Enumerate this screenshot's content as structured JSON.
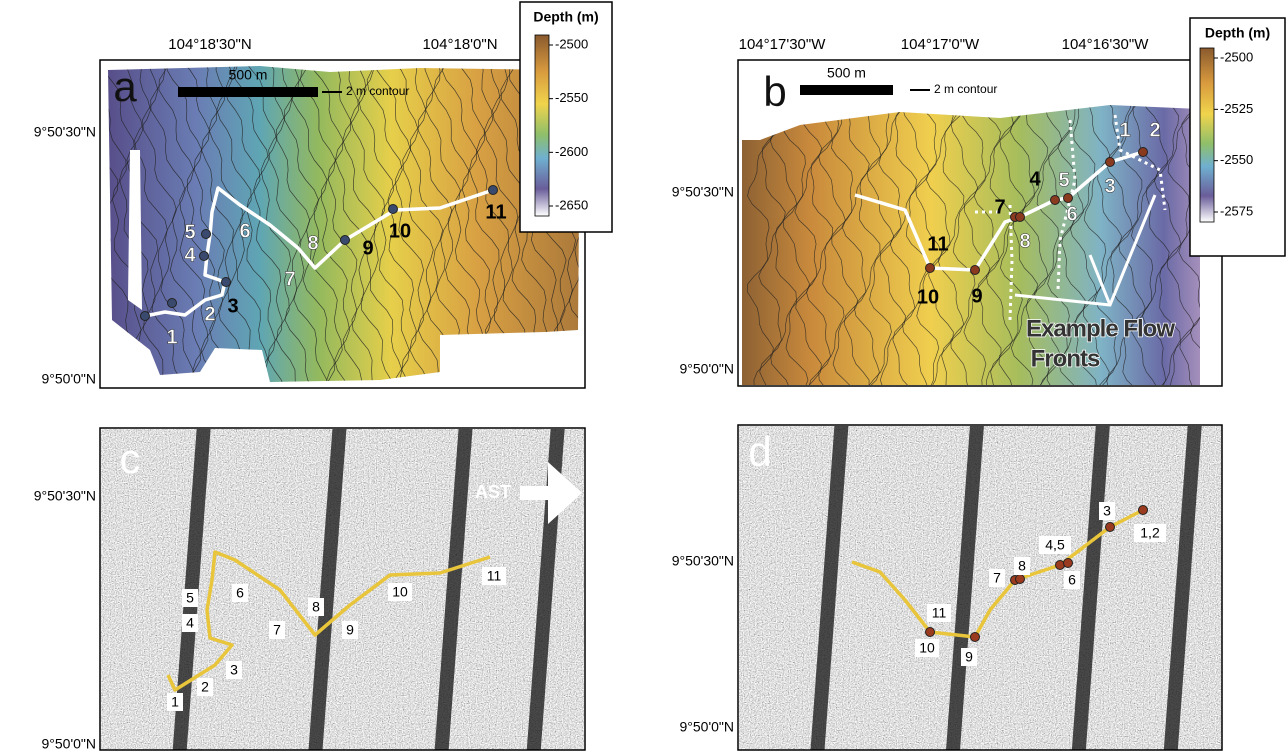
{
  "panels": [
    {
      "letter": "a",
      "top_labels": [
        "104°18'30\"N",
        "104°18'0\"N"
      ],
      "left_labels": [
        "9°50'30\"N",
        "9°50'0\"N"
      ],
      "scale_label": "500 m",
      "contour_label": "2 m contour",
      "colorbar": {
        "title": "Depth (m)",
        "ticks": [
          -2500,
          -2550,
          -2600,
          -2650
        ]
      },
      "stations": [
        "1",
        "2",
        "3",
        "4",
        "5",
        "6",
        "7",
        "8",
        "9",
        "10",
        "11"
      ]
    },
    {
      "letter": "b",
      "top_labels": [
        "104°17'30\"W",
        "104°17'0\"W",
        "104°16'30\"W"
      ],
      "left_labels": [
        "9°50'30\"N",
        "9°50'0\"N"
      ],
      "scale_label": "500 m",
      "contour_label": "2 m contour",
      "colorbar": {
        "title": "Depth (m)",
        "ticks": [
          -2500,
          -2525,
          -2550,
          -2575
        ]
      },
      "stations": [
        "1",
        "2",
        "3",
        "4",
        "5",
        "6",
        "7",
        "8",
        "9",
        "10",
        "11"
      ],
      "annotation": [
        "Example Flow",
        "Fronts"
      ]
    },
    {
      "letter": "c",
      "left_labels": [
        "9°50'30\"N",
        "9°50'0\"N"
      ],
      "arrow_label": "AST",
      "stations": [
        "1",
        "2",
        "3",
        "4",
        "5",
        "6",
        "7",
        "8",
        "9",
        "10",
        "11"
      ]
    },
    {
      "letter": "d",
      "left_labels": [
        "9°50'30\"N",
        "9°50'0\"N"
      ],
      "stations": [
        "1,2",
        "3",
        "4,5",
        "6",
        "7",
        "8",
        "9",
        "10",
        "11"
      ]
    }
  ]
}
